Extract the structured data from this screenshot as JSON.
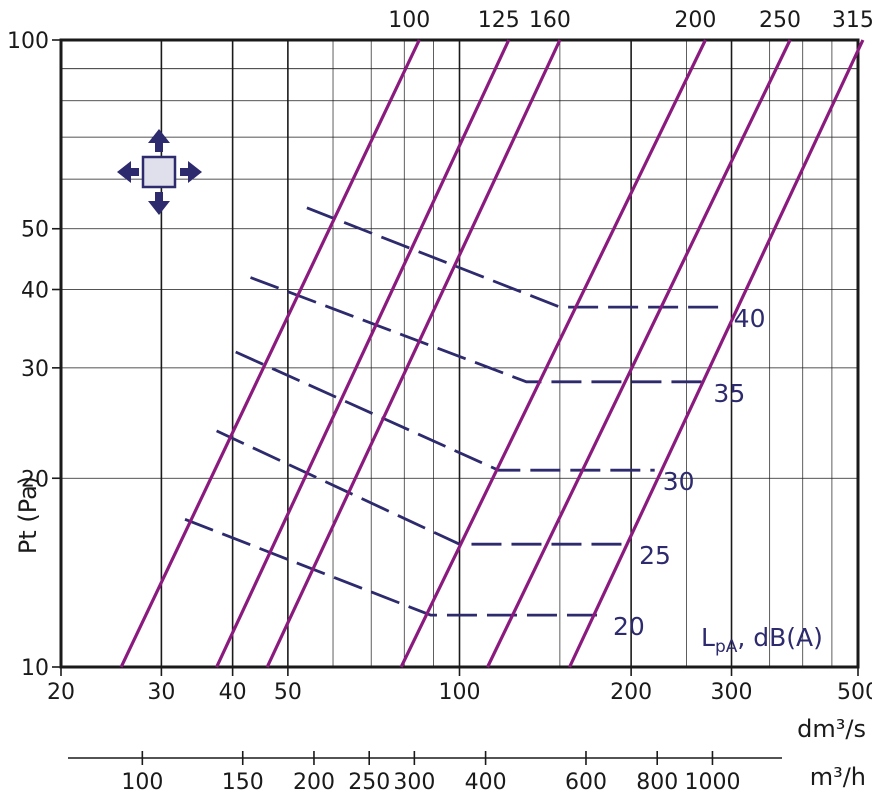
{
  "chart_data": {
    "type": "line",
    "title": "",
    "xlabel": "dm³/s",
    "x2label": "m³/h",
    "ylabel": "Pt (Pa)",
    "xscale": "log",
    "yscale": "log",
    "xlim": [
      20,
      500
    ],
    "ylim": [
      10,
      100
    ],
    "grid": true,
    "x_ticks": [
      20,
      30,
      40,
      50,
      100,
      200,
      300,
      500
    ],
    "x_tick_labels": [
      "20",
      "30",
      "40",
      "50",
      "100",
      "200",
      "300",
      "500"
    ],
    "x_minor_ticks": [
      60,
      70,
      80,
      90,
      150,
      250,
      350,
      400,
      450
    ],
    "x2_ticks": [
      100,
      150,
      200,
      250,
      300,
      400,
      600,
      800,
      1000
    ],
    "x2_tick_labels": [
      "100",
      "150",
      "200",
      "250",
      "300",
      "400",
      "600",
      "800",
      "1000"
    ],
    "y_ticks": [
      10,
      20,
      30,
      40,
      50,
      100
    ],
    "y_tick_labels": [
      "10",
      "20",
      "30",
      "40",
      "50",
      "100"
    ],
    "y_minor_ticks": [
      60,
      70,
      80,
      90
    ],
    "diffuser_series": [
      {
        "name": "100",
        "points": [
          [
            25.5,
            10
          ],
          [
            85,
            100
          ]
        ]
      },
      {
        "name": "125",
        "points": [
          [
            37.5,
            10
          ],
          [
            122,
            100
          ]
        ]
      },
      {
        "name": "160",
        "points": [
          [
            46,
            10
          ],
          [
            150,
            100
          ]
        ]
      },
      {
        "name": "200",
        "points": [
          [
            79,
            10
          ],
          [
            270,
            100
          ]
        ]
      },
      {
        "name": "250",
        "points": [
          [
            112,
            10
          ],
          [
            380,
            100
          ]
        ]
      },
      {
        "name": "315",
        "points": [
          [
            156,
            10
          ],
          [
            510,
            100
          ]
        ]
      }
    ],
    "sound_level_series": [
      {
        "name": "20",
        "points": [
          [
            33,
            17.2
          ],
          [
            89,
            12.1
          ],
          [
            180,
            12.1
          ]
        ]
      },
      {
        "name": "25",
        "points": [
          [
            37.5,
            23.8
          ],
          [
            100,
            15.7
          ],
          [
            200,
            15.7
          ]
        ]
      },
      {
        "name": "30",
        "points": [
          [
            40.5,
            31.8
          ],
          [
            117,
            20.6
          ],
          [
            220,
            20.6
          ]
        ]
      },
      {
        "name": "35",
        "points": [
          [
            43,
            41.8
          ],
          [
            131,
            28.5
          ],
          [
            270,
            28.5
          ]
        ]
      },
      {
        "name": "40",
        "points": [
          [
            54,
            54
          ],
          [
            150,
            37.5
          ],
          [
            293,
            37.5
          ]
        ]
      }
    ],
    "legend_text": "L",
    "legend_subscript": "pA",
    "legend_suffix": ", dB(A)",
    "colors": {
      "diffuser_line": "#8b1a7e",
      "sound_line": "#2d2a6e",
      "grid": "#1a1a1a",
      "icon": "#2d2a6e"
    }
  },
  "icon": {
    "name": "four-way-arrows-icon"
  }
}
